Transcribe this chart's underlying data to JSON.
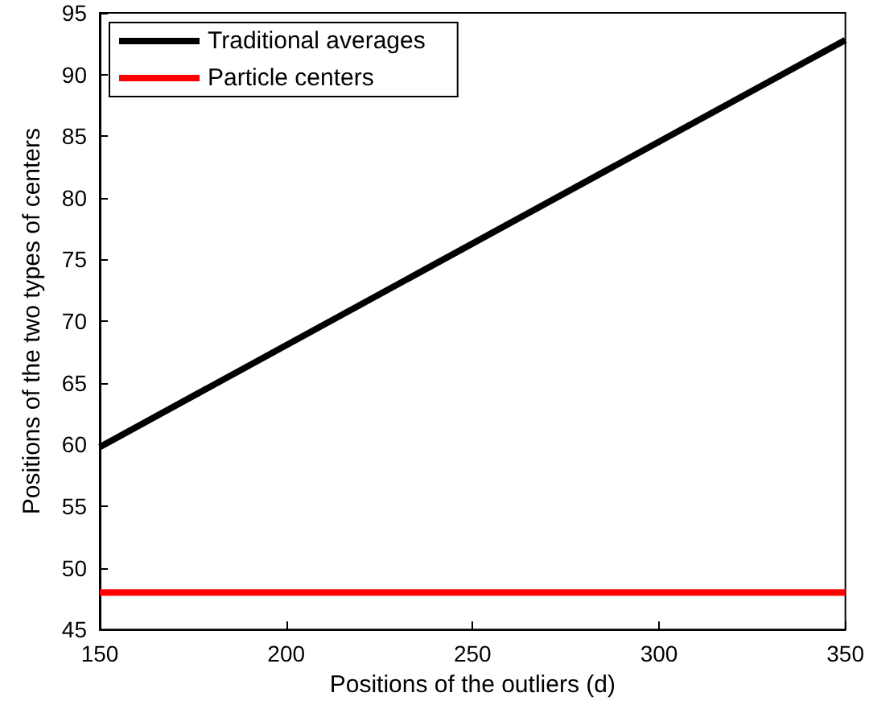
{
  "chart_data": {
    "type": "line",
    "xlabel": "Positions of the outliers (d)",
    "ylabel": "Positions of the two types of centers",
    "x": [
      150,
      350
    ],
    "series": [
      {
        "name": "Traditional averages",
        "color": "#000000",
        "values": [
          59.8,
          92.8
        ]
      },
      {
        "name": "Particle centers",
        "color": "#ff0000",
        "values": [
          48,
          48
        ]
      }
    ],
    "xlim": [
      150,
      350
    ],
    "xticks": [
      150,
      200,
      250,
      300,
      350
    ],
    "ylim": [
      45,
      95
    ],
    "yticks": [
      45,
      50,
      55,
      60,
      65,
      70,
      75,
      80,
      85,
      90,
      95
    ],
    "grid": false,
    "legend": "top left",
    "marker": "none",
    "line_style": "solid"
  }
}
